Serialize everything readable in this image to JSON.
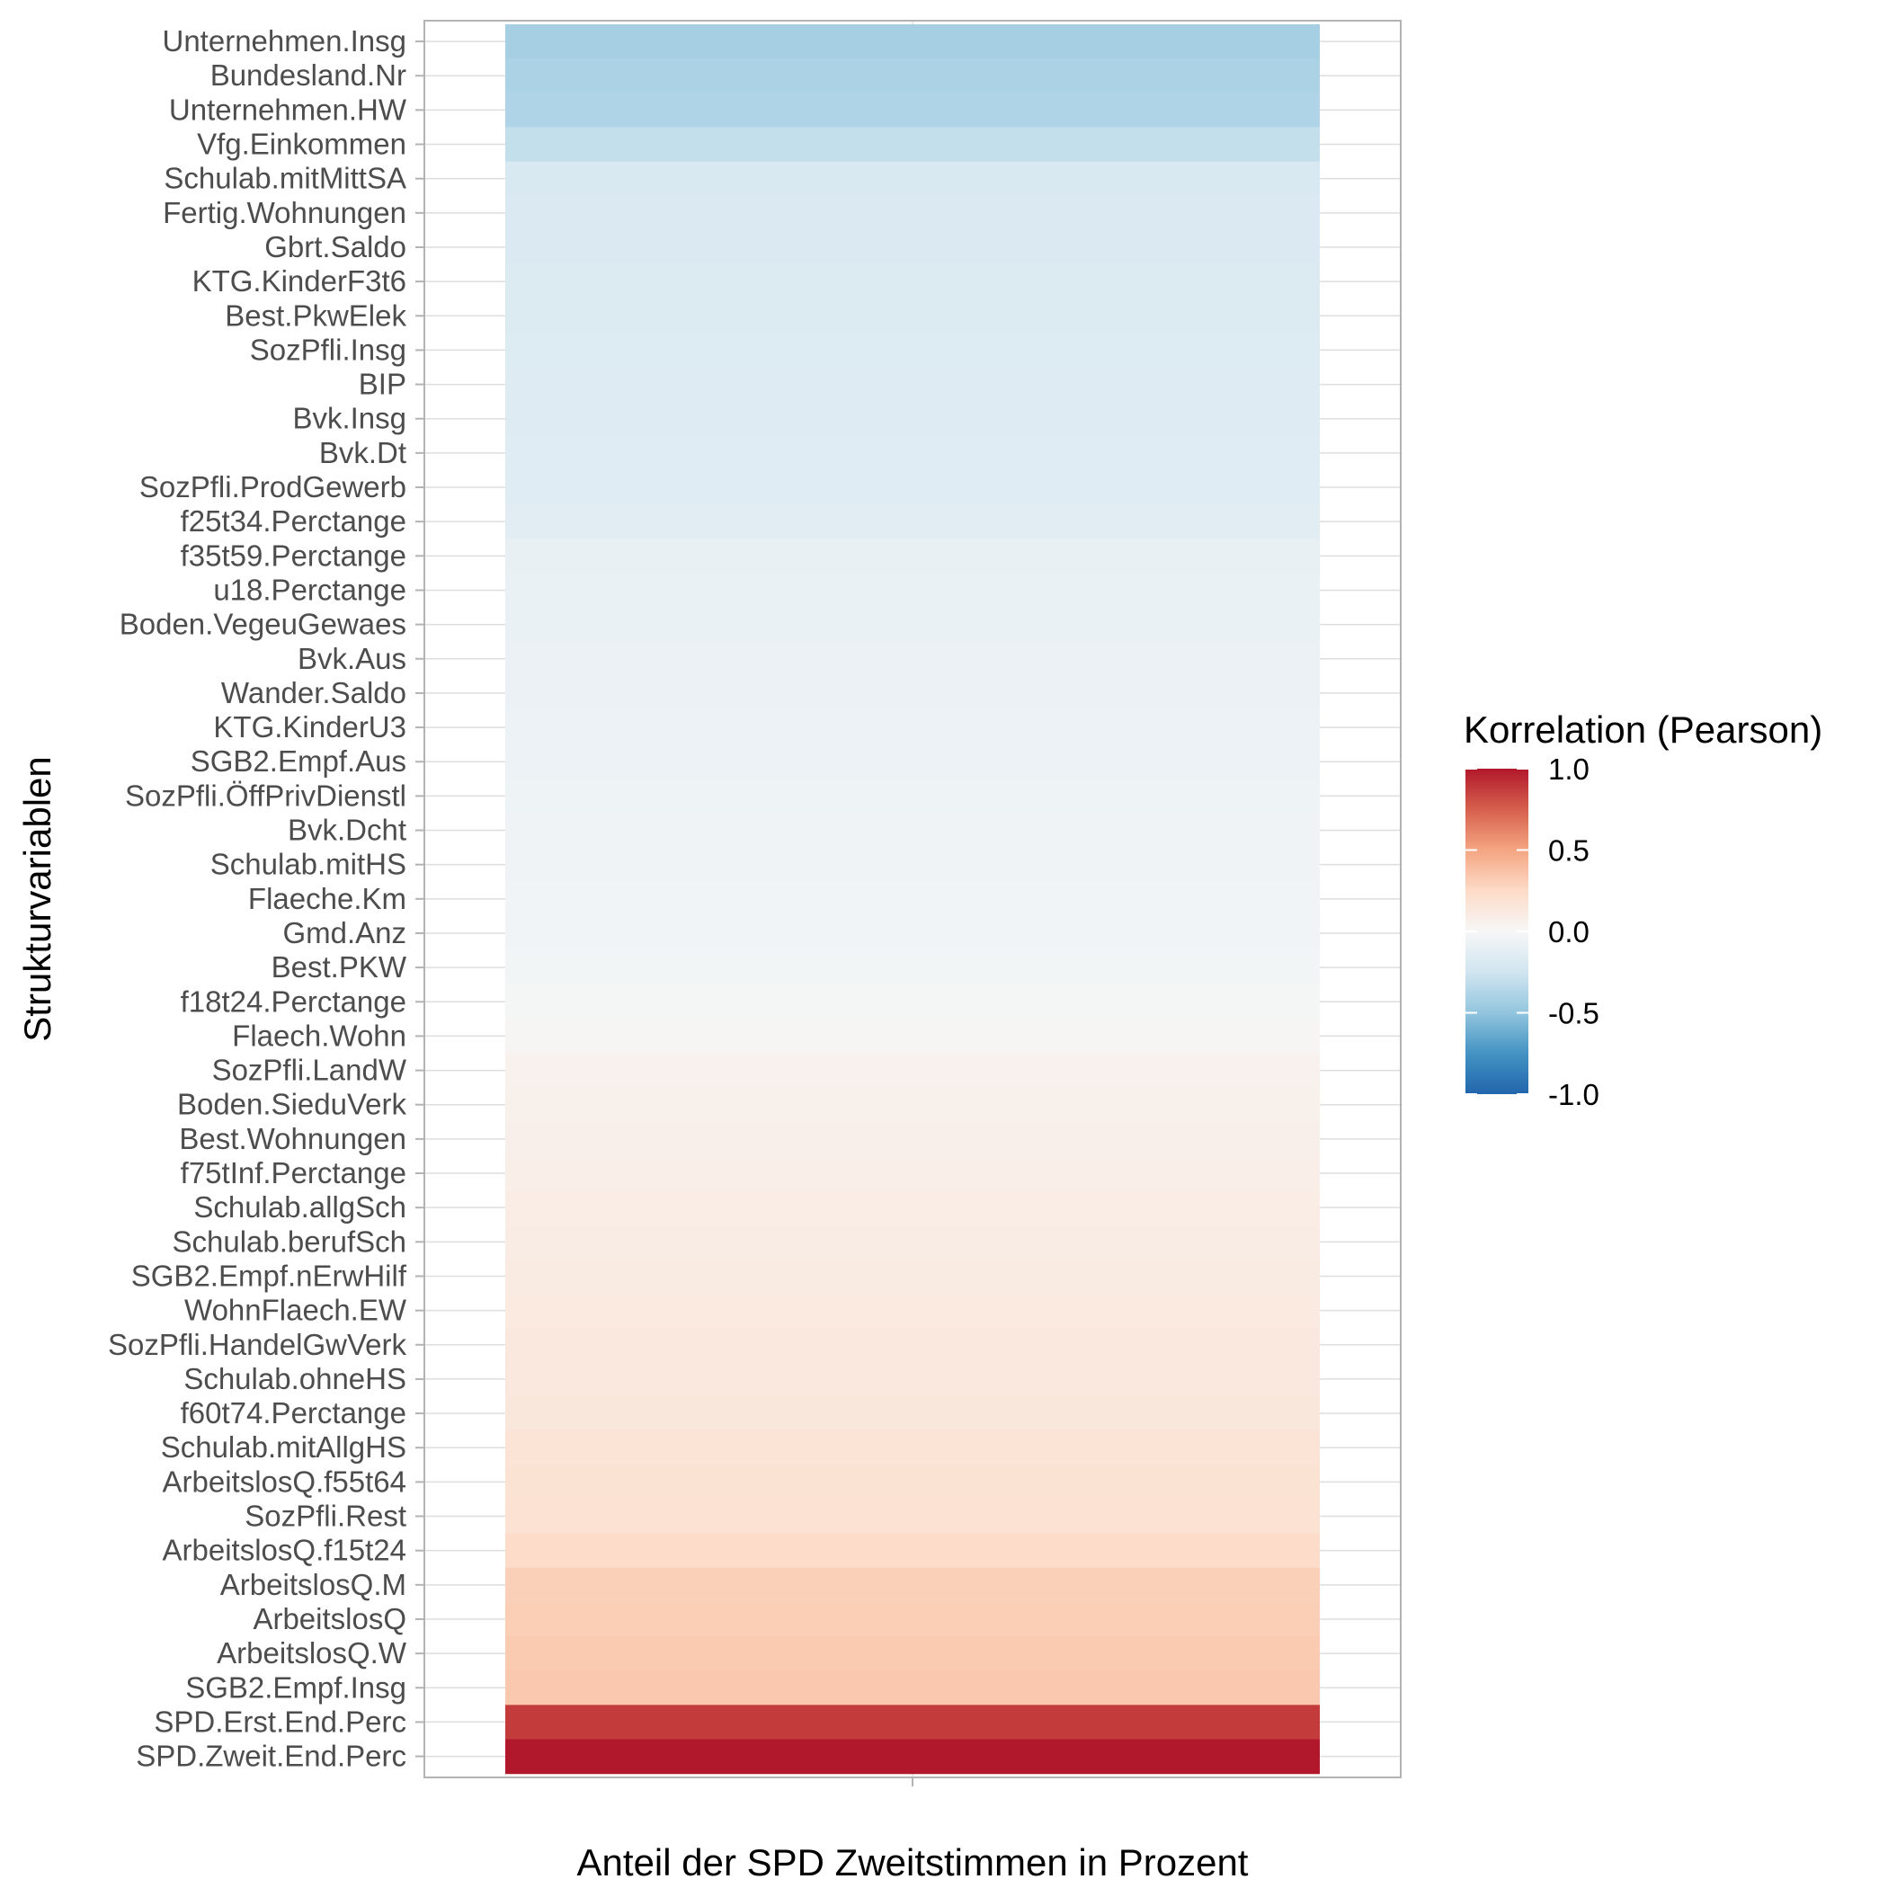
{
  "chart_data": {
    "type": "heatmap",
    "xlabel": "Anteil der SPD Zweitstimmen in Prozent",
    "ylabel": "Strukturvariablen",
    "x_categories": [
      ""
    ],
    "rows": [
      {
        "label": "Unternehmen.Insg",
        "value": -0.42
      },
      {
        "label": "Bundesland.Nr",
        "value": -0.4
      },
      {
        "label": "Unternehmen.HW",
        "value": -0.38
      },
      {
        "label": "Vfg.Einkommen",
        "value": -0.3
      },
      {
        "label": "Schulab.mitMittSA",
        "value": -0.2
      },
      {
        "label": "Fertig.Wohnungen",
        "value": -0.19
      },
      {
        "label": "Gbrt.Saldo",
        "value": -0.19
      },
      {
        "label": "KTG.KinderF3t6",
        "value": -0.18
      },
      {
        "label": "Best.PkwElek",
        "value": -0.18
      },
      {
        "label": "SozPfli.Insg",
        "value": -0.17
      },
      {
        "label": "BIP",
        "value": -0.16
      },
      {
        "label": "Bvk.Insg",
        "value": -0.16
      },
      {
        "label": "Bvk.Dt",
        "value": -0.15
      },
      {
        "label": "SozPfli.ProdGewerb",
        "value": -0.15
      },
      {
        "label": "f25t34.Perctange",
        "value": -0.14
      },
      {
        "label": "f35t59.Perctange",
        "value": -0.1
      },
      {
        "label": "u18.Perctange",
        "value": -0.09
      },
      {
        "label": "Boden.VegeuGewaes",
        "value": -0.09
      },
      {
        "label": "Bvk.Aus",
        "value": -0.08
      },
      {
        "label": "Wander.Saldo",
        "value": -0.08
      },
      {
        "label": "KTG.KinderU3",
        "value": -0.07
      },
      {
        "label": "SGB2.Empf.Aus",
        "value": -0.07
      },
      {
        "label": "SozPfli.ÖffPrivDienstl",
        "value": -0.06
      },
      {
        "label": "Bvk.Dcht",
        "value": -0.05
      },
      {
        "label": "Schulab.mitHS",
        "value": -0.05
      },
      {
        "label": "Flaeche.Km",
        "value": -0.04
      },
      {
        "label": "Gmd.Anz",
        "value": -0.04
      },
      {
        "label": "Best.PKW",
        "value": -0.03
      },
      {
        "label": "f18t24.Perctange",
        "value": -0.02
      },
      {
        "label": "Flaech.Wohn",
        "value": 0.02
      },
      {
        "label": "SozPfli.LandW",
        "value": 0.05
      },
      {
        "label": "Boden.SieduVerk",
        "value": 0.06
      },
      {
        "label": "Best.Wohnungen",
        "value": 0.07
      },
      {
        "label": "f75tInf.Perctange",
        "value": 0.08
      },
      {
        "label": "Schulab.allgSch",
        "value": 0.09
      },
      {
        "label": "Schulab.berufSch",
        "value": 0.1
      },
      {
        "label": "SGB2.Empf.nErwHilf",
        "value": 0.11
      },
      {
        "label": "WohnFlaech.EW",
        "value": 0.12
      },
      {
        "label": "SozPfli.HandelGwVerk",
        "value": 0.13
      },
      {
        "label": "Schulab.ohneHS",
        "value": 0.13
      },
      {
        "label": "f60t74.Perctange",
        "value": 0.14
      },
      {
        "label": "Schulab.mitAllgHS",
        "value": 0.17
      },
      {
        "label": "ArbeitslosQ.f55t64",
        "value": 0.18
      },
      {
        "label": "SozPfli.Rest",
        "value": 0.19
      },
      {
        "label": "ArbeitslosQ.f15t24",
        "value": 0.24
      },
      {
        "label": "ArbeitslosQ.M",
        "value": 0.3
      },
      {
        "label": "ArbeitslosQ",
        "value": 0.31
      },
      {
        "label": "ArbeitslosQ.W",
        "value": 0.33
      },
      {
        "label": "SGB2.Empf.Insg",
        "value": 0.34
      },
      {
        "label": "SPD.Erst.End.Perc",
        "value": 0.88
      },
      {
        "label": "SPD.Zweit.End.Perc",
        "value": 1.0
      }
    ],
    "legend": {
      "title": "Korrelation (Pearson)",
      "placement": "right",
      "ticks": [
        {
          "value": 1.0,
          "label": "1.0"
        },
        {
          "value": 0.5,
          "label": "0.5"
        },
        {
          "value": 0.0,
          "label": "0.0"
        },
        {
          "value": -0.5,
          "label": "-0.5"
        },
        {
          "value": -1.0,
          "label": "-1.0"
        }
      ]
    },
    "color_scale": {
      "palette": "RdBu",
      "stops": [
        {
          "value": -1.0,
          "color": "#2166ac"
        },
        {
          "value": -0.75,
          "color": "#4393c3"
        },
        {
          "value": -0.5,
          "color": "#92c5de"
        },
        {
          "value": -0.25,
          "color": "#d1e5f0"
        },
        {
          "value": 0.0,
          "color": "#f7f7f7"
        },
        {
          "value": 0.25,
          "color": "#fddbc7"
        },
        {
          "value": 0.5,
          "color": "#f4a582"
        },
        {
          "value": 0.75,
          "color": "#d6604d"
        },
        {
          "value": 1.0,
          "color": "#b2182b"
        }
      ]
    },
    "grid": true
  }
}
